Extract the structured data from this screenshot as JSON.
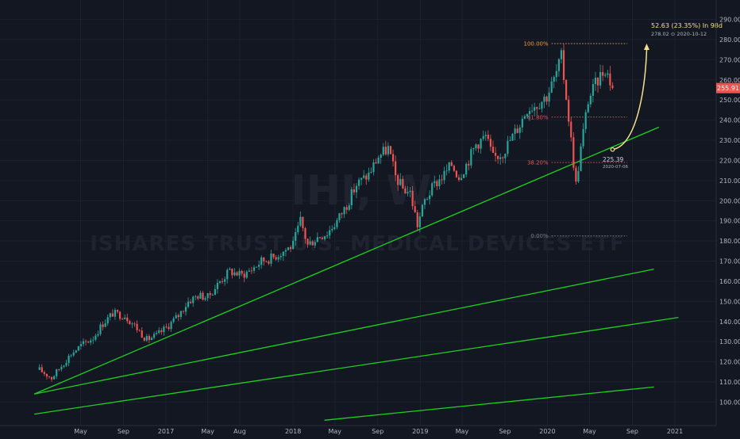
{
  "watermark": {
    "symbol": "IHI, W",
    "name": "ISHARES TRUST U.S. MEDICAL DEVICES ETF"
  },
  "price_label": "255.91",
  "annotation": {
    "projection_text": "52.63 (23.35%) In 98d",
    "projection_sub": "278.02 ⊙ 2020-10-12",
    "point_value": "225.39",
    "point_date": "2020-07-06"
  },
  "colors": {
    "background": "#131722",
    "up": "#26a69a",
    "down": "#ef5350",
    "trend": "#1fd11f",
    "fib_top": "#f0a03c",
    "fib_levels": "#ef5350",
    "fib_zero": "#787b86",
    "arrow": "#f5e089",
    "axis_text": "#b2b5be",
    "price_badge": "#ef5350"
  },
  "chart_data": {
    "type": "candlestick",
    "interval": "weekly",
    "ylim": [
      95,
      292
    ],
    "y_ticks": [
      100,
      110,
      120,
      130,
      140,
      150,
      160,
      170,
      180,
      190,
      200,
      210,
      220,
      230,
      240,
      250,
      260,
      270,
      280,
      290
    ],
    "x_ticks": [
      "May",
      "Sep",
      "2017",
      "May",
      "Aug",
      "2018",
      "May",
      "Sep",
      "2019",
      "May",
      "Sep",
      "2020",
      "May",
      "Sep",
      "2021"
    ],
    "x_tick_dates": [
      "2016-05-01",
      "2016-09-01",
      "2017-01-01",
      "2017-05-01",
      "2017-08-01",
      "2018-01-01",
      "2018-05-01",
      "2018-09-01",
      "2019-01-01",
      "2019-05-01",
      "2019-09-01",
      "2020-01-01",
      "2020-05-01",
      "2020-09-01",
      "2021-01-01"
    ],
    "close_path": [
      [
        "2016-01-04",
        116
      ],
      [
        "2016-02-08",
        112
      ],
      [
        "2016-03-07",
        118
      ],
      [
        "2016-04-04",
        124
      ],
      [
        "2016-05-02",
        128
      ],
      [
        "2016-06-06",
        132
      ],
      [
        "2016-07-04",
        139
      ],
      [
        "2016-08-01",
        144
      ],
      [
        "2016-09-05",
        143
      ],
      [
        "2016-10-03",
        138
      ],
      [
        "2016-11-07",
        131
      ],
      [
        "2016-12-05",
        133
      ],
      [
        "2017-01-02",
        137
      ],
      [
        "2017-02-06",
        143
      ],
      [
        "2017-03-06",
        150
      ],
      [
        "2017-04-03",
        153
      ],
      [
        "2017-05-01",
        152
      ],
      [
        "2017-06-05",
        160
      ],
      [
        "2017-07-03",
        165
      ],
      [
        "2017-08-07",
        163
      ],
      [
        "2017-09-04",
        166
      ],
      [
        "2017-10-02",
        170
      ],
      [
        "2017-11-06",
        172
      ],
      [
        "2017-12-04",
        175
      ],
      [
        "2018-01-01",
        178
      ],
      [
        "2018-01-22",
        190
      ],
      [
        "2018-02-12",
        178
      ],
      [
        "2018-03-12",
        182
      ],
      [
        "2018-04-09",
        184
      ],
      [
        "2018-05-07",
        190
      ],
      [
        "2018-06-04",
        198
      ],
      [
        "2018-07-02",
        208
      ],
      [
        "2018-08-06",
        213
      ],
      [
        "2018-09-03",
        222
      ],
      [
        "2018-10-01",
        226
      ],
      [
        "2018-10-22",
        212
      ],
      [
        "2018-11-12",
        206
      ],
      [
        "2018-12-03",
        204
      ],
      [
        "2018-12-24",
        188
      ],
      [
        "2019-01-14",
        200
      ],
      [
        "2019-02-11",
        208
      ],
      [
        "2019-03-11",
        213
      ],
      [
        "2019-04-01",
        218
      ],
      [
        "2019-04-22",
        212
      ],
      [
        "2019-05-13",
        218
      ],
      [
        "2019-06-10",
        228
      ],
      [
        "2019-07-08",
        232
      ],
      [
        "2019-07-29",
        221
      ],
      [
        "2019-08-26",
        224
      ],
      [
        "2019-09-23",
        232
      ],
      [
        "2019-10-14",
        238
      ],
      [
        "2019-11-04",
        246
      ],
      [
        "2019-12-02",
        248
      ],
      [
        "2019-12-30",
        252
      ],
      [
        "2020-01-20",
        260
      ],
      [
        "2020-02-10",
        271
      ],
      [
        "2020-02-24",
        252
      ],
      [
        "2020-03-09",
        230
      ],
      [
        "2020-03-23",
        208
      ],
      [
        "2020-04-06",
        226
      ],
      [
        "2020-04-27",
        250
      ],
      [
        "2020-05-25",
        260
      ],
      [
        "2020-06-15",
        266
      ],
      [
        "2020-07-06",
        255.91
      ]
    ],
    "trendlines": [
      {
        "start": [
          "2015-12-20",
          104
        ],
        "end": [
          "2020-11-16",
          236.5
        ]
      },
      {
        "start": [
          "2015-12-20",
          104
        ],
        "end": [
          "2020-11-02",
          166
        ]
      },
      {
        "start": [
          "2015-12-20",
          94
        ],
        "end": [
          "2021-01-11",
          142
        ]
      },
      {
        "start": [
          "2018-04-01",
          91
        ],
        "end": [
          "2020-11-02",
          107.5
        ]
      }
    ],
    "fibonacci": {
      "start_date": "2020-01-13",
      "end_date": "2020-08-17",
      "high": 278.02,
      "low": 182.5,
      "levels": [
        {
          "label": "100.00%",
          "value": 278.02
        },
        {
          "label": "61.80%",
          "value": 241.5
        },
        {
          "label": "38.20%",
          "value": 219
        },
        {
          "label": "0.00%",
          "value": 182.5
        }
      ]
    },
    "projection": {
      "start": [
        "2020-07-06",
        225.39
      ],
      "end": [
        "2020-10-12",
        278.02
      ]
    }
  }
}
